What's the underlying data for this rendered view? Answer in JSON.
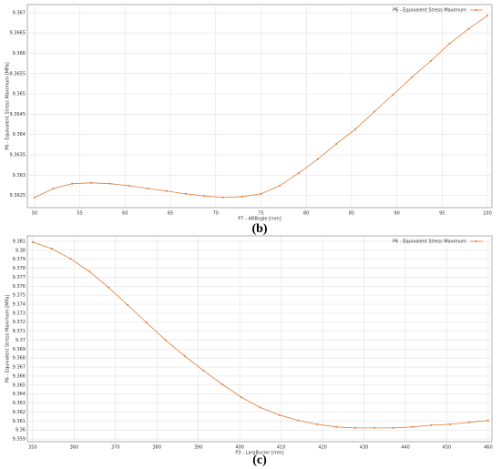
{
  "chart_data": [
    {
      "type": "line",
      "caption": "(b)",
      "x_label": "P7 - ARBogie [mm]",
      "y_label": "P6 - Equivalent Stress Maximum [MPa]",
      "x": [
        50,
        52.08,
        54.17,
        56.25,
        58.33,
        60.42,
        62.5,
        64.58,
        66.67,
        68.75,
        70.83,
        72.92,
        75,
        77.08,
        79.17,
        81.25,
        83.33,
        85.42,
        87.5,
        89.58,
        91.67,
        93.75,
        95.83,
        97.92,
        100
      ],
      "series": [
        {
          "name": "P6 - Equivalent Stress Maximum",
          "color": "#e07b39",
          "values": [
            9.36245,
            9.36267,
            9.36279,
            9.36281,
            9.36279,
            9.36274,
            9.36267,
            9.36261,
            9.36254,
            9.36249,
            9.36245,
            9.36247,
            9.36254,
            9.36274,
            9.36305,
            9.36339,
            9.36377,
            9.36413,
            9.36456,
            9.36498,
            9.36541,
            9.36581,
            9.36624,
            9.3666,
            9.36693
          ]
        }
      ],
      "xlim": [
        49.2,
        100.5
      ],
      "xticks": [
        50,
        55,
        60,
        65,
        70,
        75,
        80,
        85,
        90,
        95,
        100
      ],
      "ylim": [
        9.3622,
        9.3672
      ],
      "yticks": [
        9.3625,
        9.363,
        9.3635,
        9.364,
        9.3645,
        9.365,
        9.3655,
        9.366,
        9.3665,
        9.367
      ],
      "grid": true,
      "legend": "upper right"
    },
    {
      "type": "line",
      "caption": "(c)",
      "x_label": "P3 - LargBucier [mm]",
      "y_label": "P6 - Equivalent Stress Maximum [MPa]",
      "x": [
        350,
        354.58,
        359.17,
        363.75,
        368.33,
        372.92,
        377.5,
        382.08,
        386.67,
        391.25,
        395.83,
        400.42,
        405,
        409.58,
        414.17,
        418.75,
        423.33,
        427.92,
        432.5,
        437.08,
        441.67,
        446.25,
        450.83,
        455.42,
        460
      ],
      "series": [
        {
          "name": "P6 - Equivalent Stress Maximum",
          "color": "#e07b39",
          "values": [
            9.3809,
            9.38018,
            9.37905,
            9.37761,
            9.37586,
            9.37391,
            9.37195,
            9.37,
            9.36825,
            9.36661,
            9.36507,
            9.36363,
            9.3625,
            9.36167,
            9.36106,
            9.36064,
            9.36034,
            9.36023,
            9.36023,
            9.36023,
            9.36034,
            9.36054,
            9.36064,
            9.36085,
            9.36106
          ]
        }
      ],
      "xlim": [
        348.7,
        460.9
      ],
      "xticks": [
        350,
        360,
        370,
        380,
        390,
        400,
        410,
        420,
        430,
        440,
        450,
        460
      ],
      "ylim": [
        9.3587,
        9.3816
      ],
      "yticks": [
        9.359,
        9.36,
        9.361,
        9.362,
        9.363,
        9.364,
        9.365,
        9.366,
        9.367,
        9.368,
        9.369,
        9.37,
        9.371,
        9.372,
        9.373,
        9.374,
        9.375,
        9.376,
        9.377,
        9.378,
        9.379,
        9.38,
        9.381
      ],
      "grid": true,
      "legend": "upper right"
    }
  ]
}
